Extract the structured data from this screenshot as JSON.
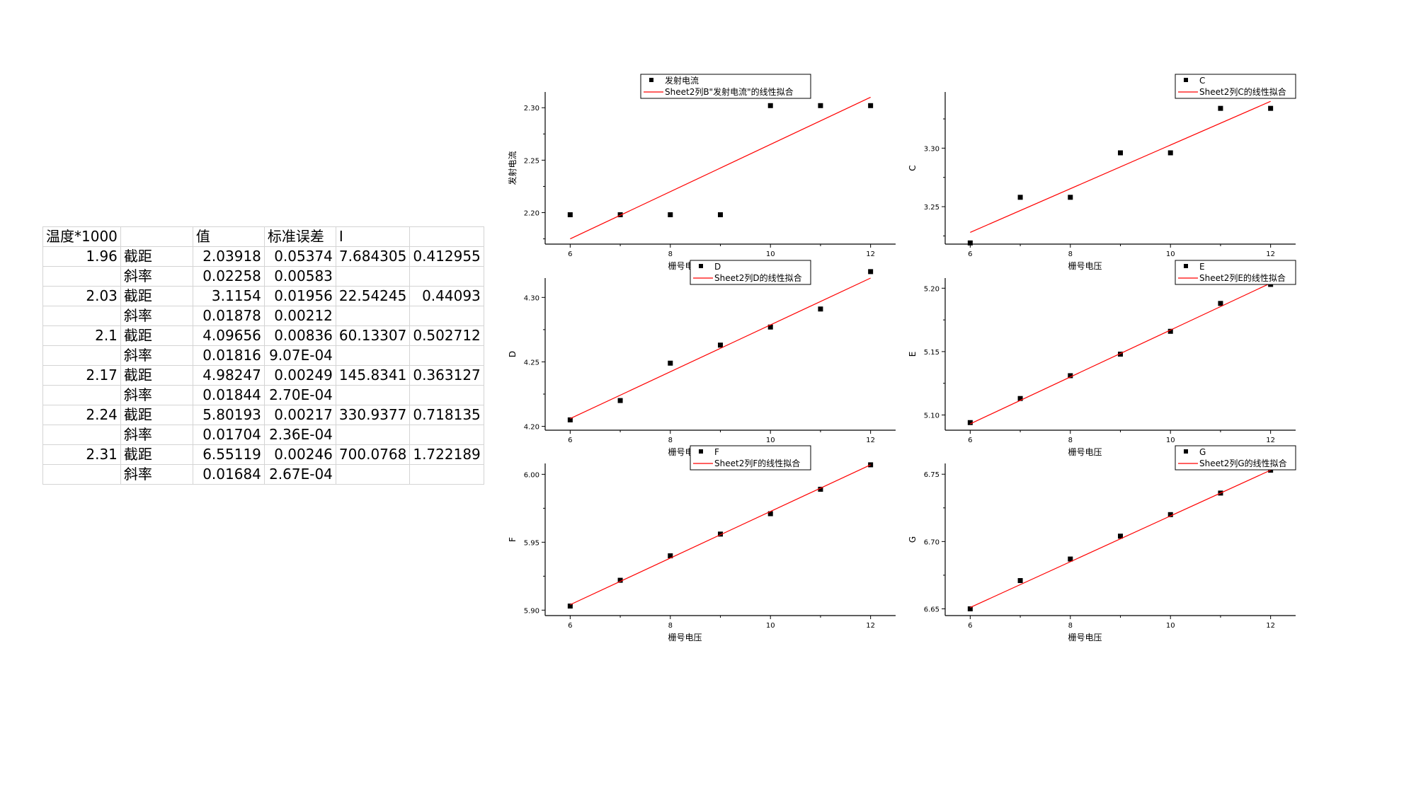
{
  "table": {
    "header": [
      "温度*1000",
      "",
      "值",
      "标准误差",
      "I",
      ""
    ],
    "rows": [
      [
        "1.96",
        "截距",
        "2.03918",
        "0.05374",
        "7.684305",
        "0.412955"
      ],
      [
        "",
        "斜率",
        "0.02258",
        "0.00583",
        "",
        ""
      ],
      [
        "2.03",
        "截距",
        "3.1154",
        "0.01956",
        "22.54245",
        "0.44093"
      ],
      [
        "",
        "斜率",
        "0.01878",
        "0.00212",
        "",
        ""
      ],
      [
        "2.1",
        "截距",
        "4.09656",
        "0.00836",
        "60.13307",
        "0.502712"
      ],
      [
        "",
        "斜率",
        "0.01816",
        "9.07E-04",
        "",
        ""
      ],
      [
        "2.17",
        "截距",
        "4.98247",
        "0.00249",
        "145.8341",
        "0.363127"
      ],
      [
        "",
        "斜率",
        "0.01844",
        "2.70E-04",
        "",
        ""
      ],
      [
        "2.24",
        "截距",
        "5.80193",
        "0.00217",
        "330.9377",
        "0.718135"
      ],
      [
        "",
        "斜率",
        "0.01704",
        "2.36E-04",
        "",
        ""
      ],
      [
        "2.31",
        "截距",
        "6.55119",
        "0.00246",
        "700.0768",
        "1.722189"
      ],
      [
        "",
        "斜率",
        "0.01684",
        "2.67E-04",
        "",
        ""
      ]
    ]
  },
  "chart_data": [
    {
      "type": "scatter",
      "xlabel": "栅号电压",
      "ylabel": "发射电流",
      "xlim": [
        5.5,
        12.5
      ],
      "ylim": [
        2.17,
        2.315
      ],
      "xticks": [
        6,
        8,
        10,
        12
      ],
      "yticks": [
        2.2,
        2.25,
        2.3
      ],
      "ytick_labels": [
        "2.20",
        "2.25",
        "2.30"
      ],
      "series": [
        {
          "name": "发射电流",
          "kind": "points",
          "x": [
            6,
            7,
            8,
            9,
            10,
            11,
            12
          ],
          "y": [
            2.198,
            2.198,
            2.198,
            2.198,
            2.302,
            2.302,
            2.302
          ]
        },
        {
          "name": "Sheet2列B\"发射电流\"的线性拟合",
          "kind": "line",
          "color": "#ff0000",
          "x": [
            6,
            12
          ],
          "y": [
            2.175,
            2.31
          ]
        }
      ],
      "legend_position": "top-right"
    },
    {
      "type": "scatter",
      "xlabel": "栅号电压",
      "ylabel": "C",
      "xlim": [
        5.5,
        12.5
      ],
      "ylim": [
        3.218,
        3.348
      ],
      "xticks": [
        6,
        8,
        10,
        12
      ],
      "yticks": [
        3.25,
        3.3
      ],
      "ytick_labels": [
        "3.25",
        "3.30"
      ],
      "series": [
        {
          "name": "C",
          "kind": "points",
          "x": [
            6,
            7,
            8,
            9,
            10,
            11,
            12
          ],
          "y": [
            3.219,
            3.258,
            3.258,
            3.296,
            3.296,
            3.334,
            3.334
          ]
        },
        {
          "name": "Sheet2列C的线性拟合",
          "kind": "line",
          "color": "#ff0000",
          "x": [
            6,
            12
          ],
          "y": [
            3.228,
            3.34
          ]
        }
      ],
      "legend_position": "top-right"
    },
    {
      "type": "scatter",
      "xlabel": "栅号电压",
      "ylabel": "D",
      "xlim": [
        5.5,
        12.5
      ],
      "ylim": [
        4.197,
        4.315
      ],
      "xticks": [
        6,
        8,
        10,
        12
      ],
      "yticks": [
        4.2,
        4.25,
        4.3
      ],
      "ytick_labels": [
        "4.20",
        "4.25",
        "4.30"
      ],
      "series": [
        {
          "name": "D",
          "kind": "points",
          "x": [
            6,
            7,
            8,
            9,
            10,
            11,
            12
          ],
          "y": [
            4.205,
            4.22,
            4.249,
            4.263,
            4.277,
            4.291,
            4.32
          ]
        },
        {
          "name": "Sheet2列D的线性拟合",
          "kind": "line",
          "color": "#ff0000",
          "x": [
            6,
            12
          ],
          "y": [
            4.206,
            4.315
          ]
        }
      ],
      "legend_position": "top-right"
    },
    {
      "type": "scatter",
      "xlabel": "栅号电压",
      "ylabel": "E",
      "xlim": [
        5.5,
        12.5
      ],
      "ylim": [
        5.088,
        5.208
      ],
      "xticks": [
        6,
        8,
        10,
        12
      ],
      "yticks": [
        5.1,
        5.15,
        5.2
      ],
      "ytick_labels": [
        "5.10",
        "5.15",
        "5.20"
      ],
      "series": [
        {
          "name": "E",
          "kind": "points",
          "x": [
            6,
            7,
            8,
            9,
            10,
            11,
            12
          ],
          "y": [
            5.094,
            5.113,
            5.131,
            5.148,
            5.166,
            5.188,
            5.203
          ]
        },
        {
          "name": "Sheet2列E的线性拟合",
          "kind": "line",
          "color": "#ff0000",
          "x": [
            6,
            12
          ],
          "y": [
            5.093,
            5.204
          ]
        }
      ],
      "legend_position": "top-right"
    },
    {
      "type": "scatter",
      "xlabel": "栅号电压",
      "ylabel": "F",
      "xlim": [
        5.5,
        12.5
      ],
      "ylim": [
        5.896,
        6.008
      ],
      "xticks": [
        6,
        8,
        10,
        12
      ],
      "yticks": [
        5.9,
        5.95,
        6.0
      ],
      "ytick_labels": [
        "5.90",
        "5.95",
        "6.00"
      ],
      "series": [
        {
          "name": "F",
          "kind": "points",
          "x": [
            6,
            7,
            8,
            9,
            10,
            11,
            12
          ],
          "y": [
            5.903,
            5.922,
            5.94,
            5.956,
            5.971,
            5.989,
            6.007
          ]
        },
        {
          "name": "Sheet2列F的线性拟合",
          "kind": "line",
          "color": "#ff0000",
          "x": [
            6,
            12
          ],
          "y": [
            5.904,
            6.007
          ]
        }
      ],
      "legend_position": "top-right"
    },
    {
      "type": "scatter",
      "xlabel": "栅号电压",
      "ylabel": "G",
      "xlim": [
        5.5,
        12.5
      ],
      "ylim": [
        6.645,
        6.758
      ],
      "xticks": [
        6,
        8,
        10,
        12
      ],
      "yticks": [
        6.65,
        6.7,
        6.75
      ],
      "ytick_labels": [
        "6.65",
        "6.70",
        "6.75"
      ],
      "series": [
        {
          "name": "G",
          "kind": "points",
          "x": [
            6,
            7,
            8,
            9,
            10,
            11,
            12
          ],
          "y": [
            6.65,
            6.671,
            6.687,
            6.704,
            6.72,
            6.736,
            6.753
          ]
        },
        {
          "name": "Sheet2列G的线性拟合",
          "kind": "line",
          "color": "#ff0000",
          "x": [
            6,
            12
          ],
          "y": [
            6.651,
            6.753
          ]
        }
      ],
      "legend_position": "top-right"
    }
  ]
}
